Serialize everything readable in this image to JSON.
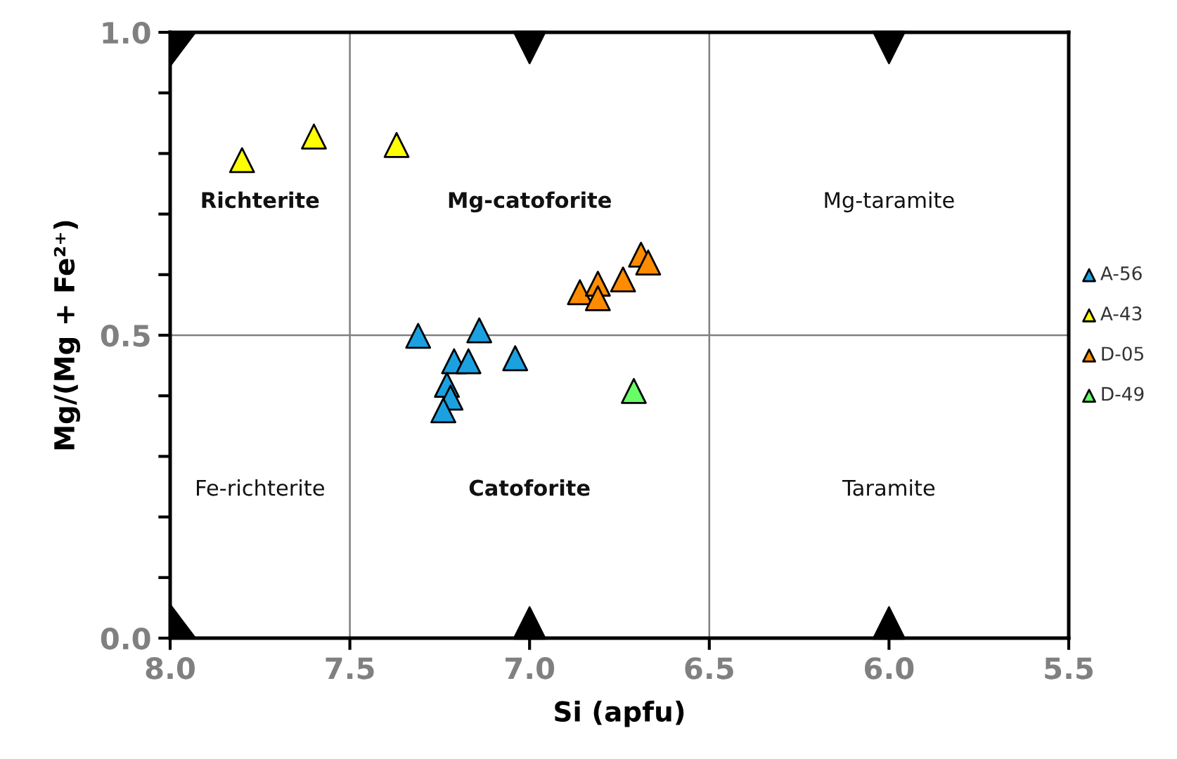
{
  "chart_data": {
    "type": "scatter",
    "xlabel": "Si (apfu)",
    "ylabel": "Mg/(Mg + Fe²⁺)",
    "xlim": [
      8.0,
      5.5
    ],
    "xticks": [
      {
        "value": 8.0,
        "label": "8.0"
      },
      {
        "value": 7.5,
        "label": "7.5"
      },
      {
        "value": 7.0,
        "label": "7.0"
      },
      {
        "value": 6.5,
        "label": "6.5"
      },
      {
        "value": 6.0,
        "label": "6.0"
      },
      {
        "value": 5.5,
        "label": "5.5"
      }
    ],
    "ylim": [
      0,
      1.0
    ],
    "yticks": [
      {
        "value": 0,
        "label": "0.0"
      },
      {
        "value": 0.1,
        "label": null
      },
      {
        "value": 0.2,
        "label": null
      },
      {
        "value": 0.3,
        "label": null
      },
      {
        "value": 0.4,
        "label": null
      },
      {
        "value": 0.5,
        "label": "0.5"
      },
      {
        "value": 0.6,
        "label": null
      },
      {
        "value": 0.7,
        "label": null
      },
      {
        "value": 0.8,
        "label": null
      },
      {
        "value": 0.9,
        "label": null
      },
      {
        "value": 1.0,
        "label": "1.0"
      }
    ],
    "marker": "triangle",
    "legend": "right",
    "grid": false,
    "series": [
      {
        "name": "A-56",
        "color": "#1ba1e2",
        "x": [
          7.31,
          7.14,
          7.21,
          7.17,
          7.04,
          7.23,
          7.22,
          7.24
        ],
        "values": [
          0.499,
          0.508,
          0.457,
          0.457,
          0.462,
          0.418,
          0.397,
          0.376
        ]
      },
      {
        "name": "A-43",
        "color": "#ffff00",
        "x": [
          7.8,
          7.6,
          7.37
        ],
        "values": [
          0.789,
          0.828,
          0.814
        ]
      },
      {
        "name": "D-05",
        "color": "#ff8c00",
        "x": [
          6.69,
          6.67,
          6.86,
          6.81,
          6.81,
          6.74
        ],
        "values": [
          0.633,
          0.62,
          0.571,
          0.585,
          0.561,
          0.592
        ]
      },
      {
        "name": "D-49",
        "color": "#66ff66",
        "x": [
          6.71
        ],
        "values": [
          0.408
        ]
      }
    ],
    "ref_lines": [
      {
        "axis": "x",
        "value": 7.5,
        "color": "#808080"
      },
      {
        "axis": "x",
        "value": 6.5,
        "color": "#808080"
      },
      {
        "axis": "y",
        "value": 0.5,
        "color": "#808080"
      }
    ],
    "annotations": [
      "Richterite",
      "Mg-catoforite",
      "Mg-taramite",
      "Fe-richterite",
      "Catoforite",
      "Taramite"
    ]
  }
}
